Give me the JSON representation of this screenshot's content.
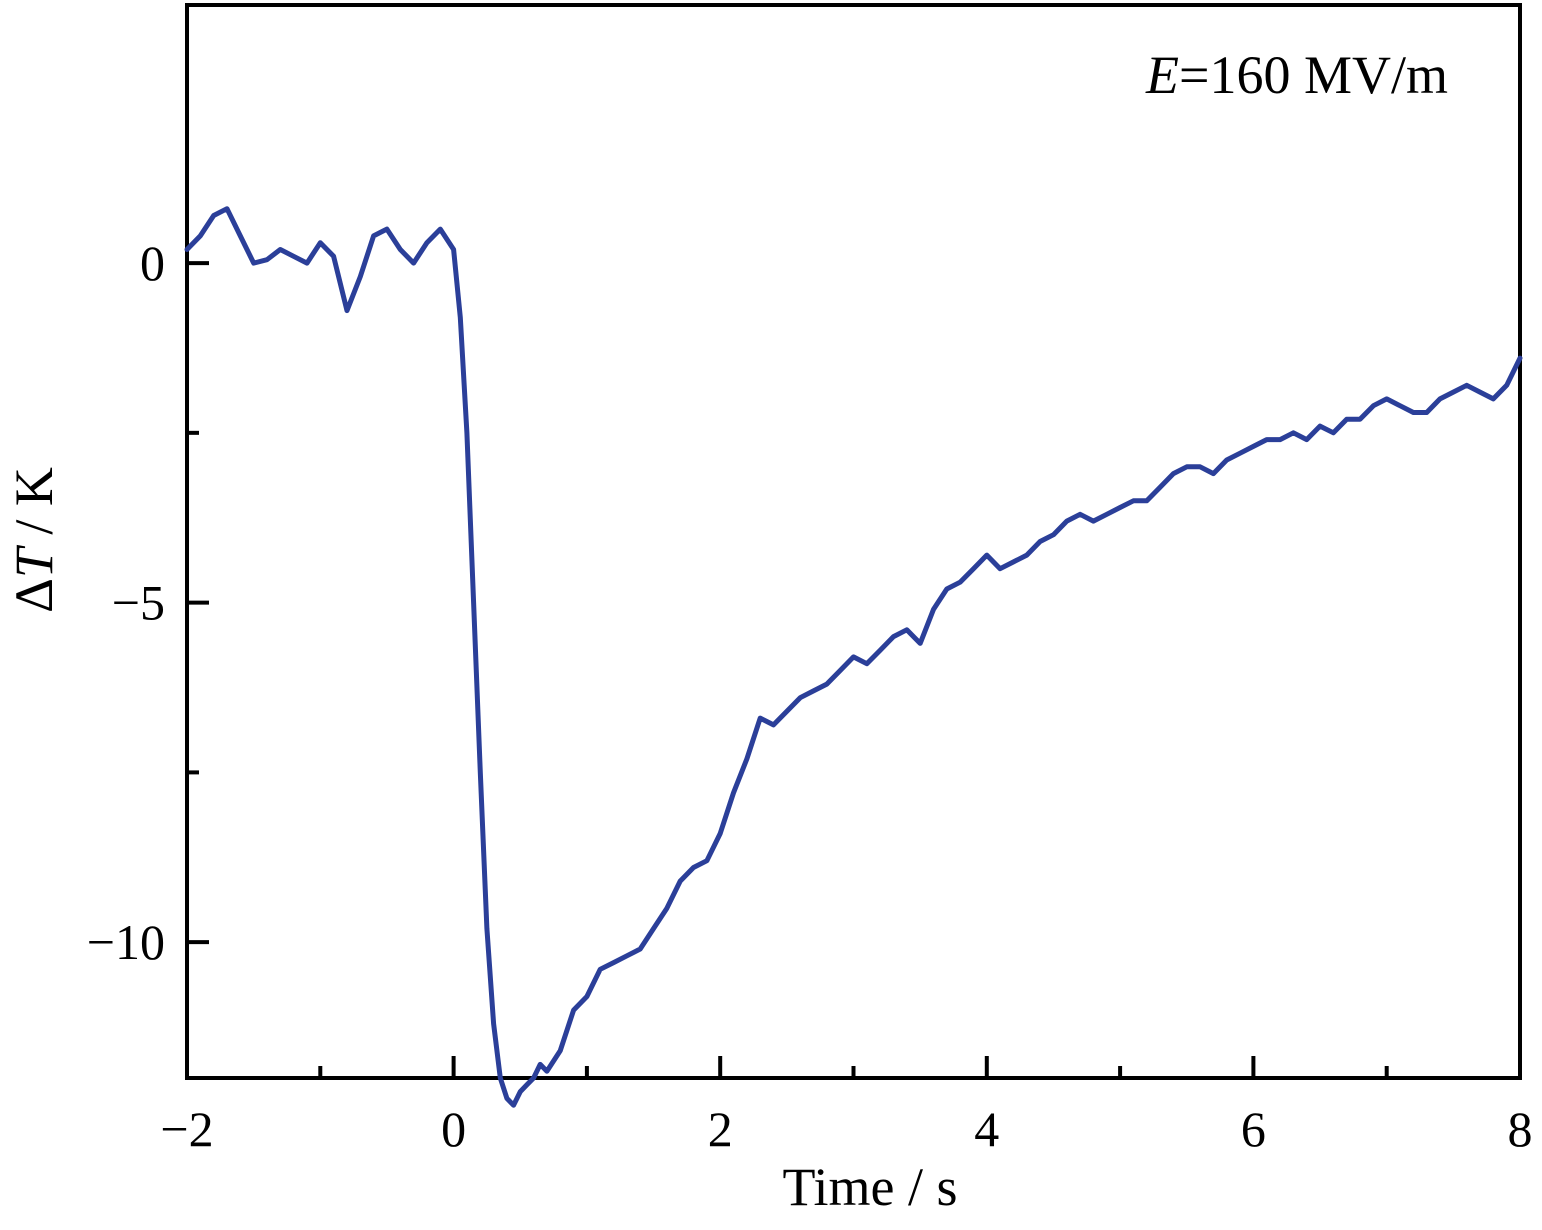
{
  "chart_data": {
    "type": "line",
    "title": "",
    "xlabel": "Time / s",
    "ylabel_prefix": "ΔT",
    "ylabel": "ΔT / K",
    "ylabel_parts": {
      "symbol": "Δ",
      "italic": "T",
      "rest": " / K"
    },
    "xlim": [
      -2,
      8
    ],
    "ylim": [
      -12.0,
      3.8
    ],
    "x_ticks_major": [
      -2,
      0,
      2,
      4,
      6,
      8
    ],
    "x_tick_labels": [
      "−2",
      "0",
      "2",
      "4",
      "6",
      "8"
    ],
    "x_ticks_minor": [
      -1,
      1,
      3,
      5,
      7
    ],
    "y_ticks_major": [
      0,
      -5,
      -10
    ],
    "y_tick_labels": [
      "0",
      "−5",
      "−10"
    ],
    "y_ticks_minor": [
      -2.5,
      -7.5
    ],
    "grid": false,
    "annotation": {
      "italic": "E",
      "rest": "=160 MV/m"
    },
    "series": [
      {
        "color": "#2b3f99",
        "x": [
          -2.0,
          -1.9,
          -1.8,
          -1.7,
          -1.6,
          -1.5,
          -1.4,
          -1.3,
          -1.2,
          -1.1,
          -1.0,
          -0.9,
          -0.8,
          -0.7,
          -0.6,
          -0.5,
          -0.4,
          -0.3,
          -0.2,
          -0.1,
          0.0,
          0.05,
          0.1,
          0.15,
          0.2,
          0.25,
          0.3,
          0.35,
          0.4,
          0.45,
          0.5,
          0.55,
          0.6,
          0.65,
          0.7,
          0.8,
          0.9,
          1.0,
          1.1,
          1.2,
          1.3,
          1.4,
          1.5,
          1.6,
          1.7,
          1.8,
          1.9,
          2.0,
          2.1,
          2.2,
          2.3,
          2.4,
          2.5,
          2.6,
          2.7,
          2.8,
          2.9,
          3.0,
          3.1,
          3.2,
          3.3,
          3.4,
          3.5,
          3.6,
          3.7,
          3.8,
          3.9,
          4.0,
          4.1,
          4.2,
          4.3,
          4.4,
          4.5,
          4.6,
          4.7,
          4.8,
          4.9,
          5.0,
          5.1,
          5.2,
          5.3,
          5.4,
          5.5,
          5.6,
          5.7,
          5.8,
          5.9,
          6.0,
          6.1,
          6.2,
          6.3,
          6.4,
          6.5,
          6.6,
          6.7,
          6.8,
          6.9,
          7.0,
          7.1,
          7.2,
          7.3,
          7.4,
          7.5,
          7.6,
          7.7,
          7.8,
          7.9,
          8.0
        ],
        "y": [
          0.2,
          0.4,
          0.7,
          0.8,
          0.4,
          0.0,
          0.05,
          0.2,
          0.1,
          0.0,
          0.3,
          0.1,
          -0.7,
          -0.2,
          0.4,
          0.5,
          0.2,
          0.0,
          0.3,
          0.5,
          0.2,
          -0.8,
          -2.5,
          -5.0,
          -7.5,
          -9.8,
          -11.2,
          -12.0,
          -12.3,
          -12.4,
          -12.2,
          -12.1,
          -12.0,
          -11.8,
          -11.9,
          -11.6,
          -11.0,
          -10.8,
          -10.4,
          -10.3,
          -10.2,
          -10.1,
          -9.8,
          -9.5,
          -9.1,
          -8.9,
          -8.8,
          -8.4,
          -7.8,
          -7.3,
          -6.7,
          -6.8,
          -6.6,
          -6.4,
          -6.3,
          -6.2,
          -6.0,
          -5.8,
          -5.9,
          -5.7,
          -5.5,
          -5.4,
          -5.6,
          -5.1,
          -4.8,
          -4.7,
          -4.5,
          -4.3,
          -4.5,
          -4.4,
          -4.3,
          -4.1,
          -4.0,
          -3.8,
          -3.7,
          -3.8,
          -3.7,
          -3.6,
          -3.5,
          -3.5,
          -3.3,
          -3.1,
          -3.0,
          -3.0,
          -3.1,
          -2.9,
          -2.8,
          -2.7,
          -2.6,
          -2.6,
          -2.5,
          -2.6,
          -2.4,
          -2.5,
          -2.3,
          -2.3,
          -2.1,
          -2.0,
          -2.1,
          -2.2,
          -2.2,
          -2.0,
          -1.9,
          -1.8,
          -1.9,
          -2.0,
          -1.8,
          -1.4
        ]
      }
    ]
  }
}
